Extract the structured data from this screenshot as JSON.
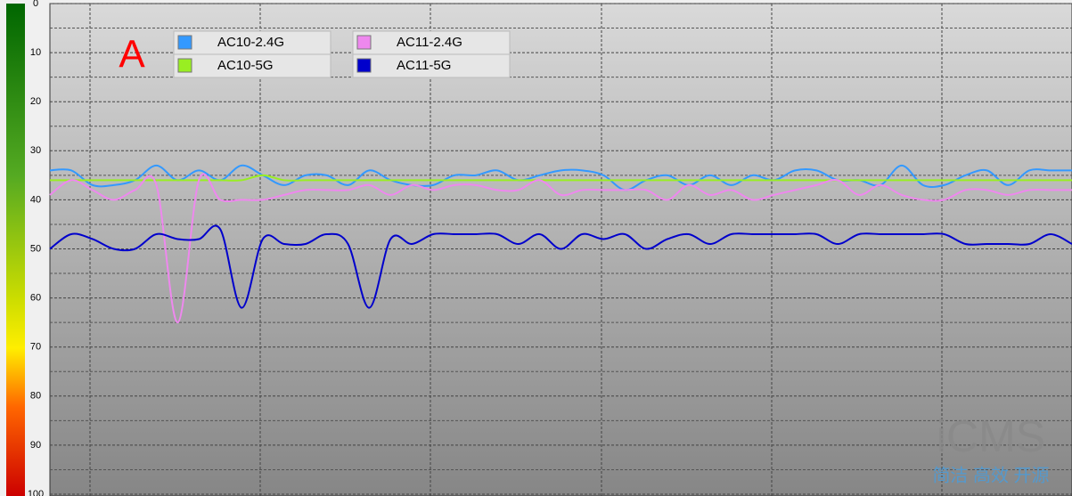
{
  "chart_data": {
    "type": "line",
    "annotation": "A",
    "watermark": "iCMS",
    "watermark_subtitle": "简洁 高效 开源",
    "ylim": [
      0,
      100
    ],
    "y_inverted": true,
    "yticks": [
      0,
      10,
      20,
      30,
      40,
      50,
      60,
      70,
      80,
      90,
      100
    ],
    "minor_yticks": [
      5,
      15,
      25,
      35,
      45,
      55,
      65,
      75,
      85,
      95
    ],
    "grid": true,
    "legend_position": "top-left",
    "series": [
      {
        "name": "AC10-2.4G",
        "color": "#3399ff",
        "values": [
          34,
          34,
          37,
          37,
          36,
          33,
          36,
          34,
          36,
          33,
          35,
          37,
          35,
          35,
          37,
          34,
          36,
          37,
          37,
          35,
          35,
          34,
          36,
          35,
          34,
          34,
          35,
          38,
          36,
          35,
          37,
          35,
          37,
          35,
          36,
          34,
          34,
          36,
          36,
          37,
          33,
          37,
          37,
          35,
          34,
          37,
          34,
          34,
          34
        ]
      },
      {
        "name": "AC10-5G",
        "color": "#99ee22",
        "values": [
          36,
          36,
          36,
          36,
          36,
          36,
          36,
          36,
          36,
          36,
          35,
          36,
          36,
          36,
          36,
          36,
          36,
          36,
          36,
          36,
          36,
          36,
          36,
          36,
          36,
          36,
          36,
          36,
          36,
          36,
          36,
          36,
          36,
          36,
          36,
          36,
          36,
          36,
          36,
          36,
          36,
          36,
          36,
          36,
          36,
          36,
          36,
          36,
          36
        ]
      },
      {
        "name": "AC11-2.4G",
        "color": "#ee88ee",
        "values": [
          39,
          36,
          38,
          40,
          38,
          37,
          65,
          36,
          40,
          40,
          40,
          39,
          38,
          38,
          38,
          37,
          39,
          37,
          38,
          37,
          37,
          38,
          38,
          36,
          39,
          38,
          38,
          38,
          38,
          40,
          37,
          39,
          38,
          40,
          39,
          38,
          37,
          36,
          39,
          37,
          39,
          40,
          40,
          38,
          38,
          39,
          38,
          38,
          38
        ]
      },
      {
        "name": "AC11-5G",
        "color": "#0000cc",
        "values": [
          50,
          47,
          48,
          50,
          50,
          47,
          48,
          48,
          46,
          62,
          48,
          49,
          49,
          47,
          49,
          62,
          48,
          49,
          47,
          47,
          47,
          47,
          49,
          47,
          50,
          47,
          48,
          47,
          50,
          48,
          47,
          49,
          47,
          47,
          47,
          47,
          47,
          49,
          47,
          47,
          47,
          47,
          47,
          49,
          49,
          49,
          49,
          47,
          49
        ]
      }
    ]
  }
}
